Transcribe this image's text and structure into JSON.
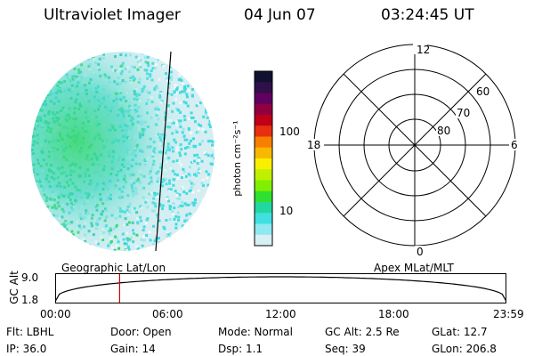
{
  "header": {
    "title": "Ultraviolet Imager",
    "date": "04 Jun 07",
    "time": "03:24:45 UT"
  },
  "colorbar": {
    "label": "photon cm⁻²s⁻¹",
    "ticks": [
      "100",
      "10"
    ],
    "colors": [
      "#101030",
      "#301048",
      "#600060",
      "#900040",
      "#c00018",
      "#e83010",
      "#f88000",
      "#f8b800",
      "#f8f000",
      "#c0f000",
      "#80f000",
      "#30e030",
      "#20d8a0",
      "#40e0e0",
      "#90e8f0",
      "#d8f0f4"
    ]
  },
  "polar": {
    "mlt_top": "12",
    "mlt_left": "18",
    "mlt_right": "6",
    "mlt_bottom": "0",
    "lat_60": "60",
    "lat_70": "70",
    "lat_80": "80"
  },
  "labels": {
    "geo": "Geographic Lat/Lon",
    "apex": "Apex MLat/MLT"
  },
  "altitude": {
    "axis_label": "GC Alt",
    "y_top": "9.0",
    "y_bottom": "1.8",
    "times": [
      "00:00",
      "06:00",
      "12:00",
      "18:00",
      "23:59"
    ],
    "current_time_hours": 3.41
  },
  "status": {
    "flt": "Flt: LBHL",
    "door": "Door: Open",
    "mode": "Mode: Normal",
    "gcalt": "GC Alt: 2.5 Re",
    "glat": "GLat:  12.7",
    "ip": "IP: 36.0",
    "gain": "Gain: 14",
    "dsp": "Dsp:     1.1",
    "seq": "Seq: 39",
    "glon": "GLon: 206.8"
  }
}
